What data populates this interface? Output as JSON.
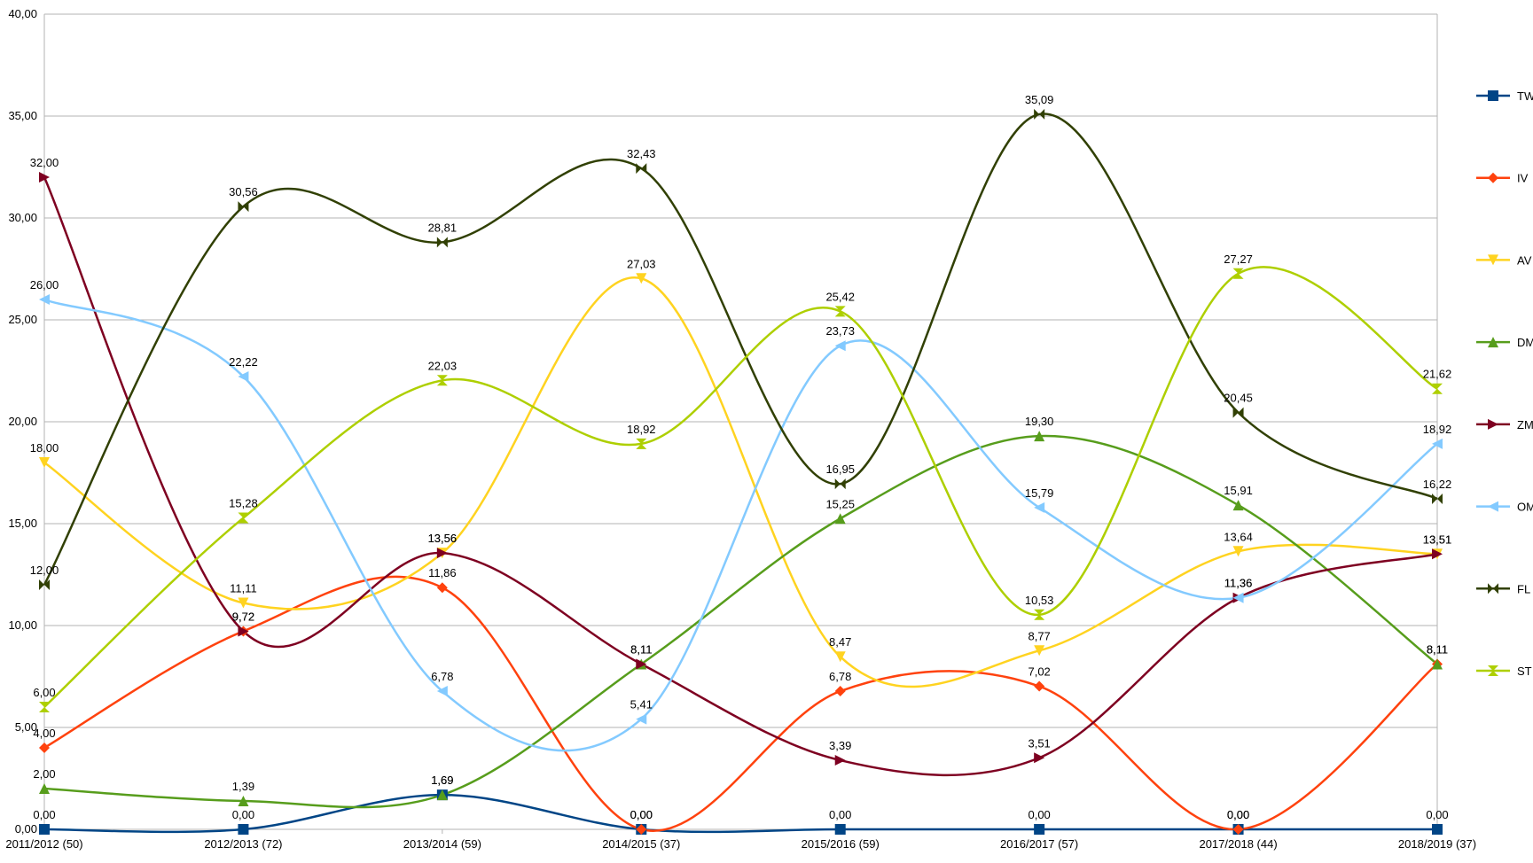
{
  "chart_data": {
    "type": "line",
    "title": "",
    "xlabel": "",
    "ylabel": "",
    "ylim": [
      0,
      40
    ],
    "yticks": [
      "0,00",
      "5,00",
      "10,00",
      "15,00",
      "20,00",
      "25,00",
      "30,00",
      "35,00",
      "40,00"
    ],
    "grid": "horizontal",
    "legend_position": "right",
    "smooth": true,
    "categories": [
      "2011/2012 (50)",
      "2012/2013 (72)",
      "2013/2014 (59)",
      "2014/2015 (37)",
      "2015/2016 (59)",
      "2016/2017 (57)",
      "2017/2018 (44)",
      "2018/2019 (37)"
    ],
    "series": [
      {
        "name": "TW",
        "color": "#004586",
        "marker": "square",
        "values": [
          0.0,
          0.0,
          1.69,
          0.0,
          0.0,
          0.0,
          0.0,
          0.0
        ],
        "labels": [
          "0,00",
          "0,00",
          "1,69",
          "0,00",
          "0,00",
          "0,00",
          "0,00",
          "0,00"
        ]
      },
      {
        "name": "IV",
        "color": "#ff420e",
        "marker": "diamond",
        "values": [
          4.0,
          9.72,
          11.86,
          0.0,
          6.78,
          7.02,
          0.0,
          8.11
        ],
        "labels": [
          "4,00",
          "9,72",
          "11,86",
          "0,00",
          "6,78",
          "7,02",
          "0,00",
          "8,11"
        ]
      },
      {
        "name": "AV",
        "color": "#ffd320",
        "marker": "triangle-down",
        "values": [
          18.0,
          11.11,
          13.56,
          27.03,
          8.47,
          8.77,
          13.64,
          13.51
        ],
        "labels": [
          "18,00",
          "11,11",
          "13,56",
          "27,03",
          "8,47",
          "8,77",
          "13,64",
          "13,51"
        ]
      },
      {
        "name": "DM",
        "color": "#579d1c",
        "marker": "triangle-up",
        "values": [
          2.0,
          1.39,
          1.69,
          8.11,
          15.25,
          19.3,
          15.91,
          8.11
        ],
        "labels": [
          "2,00",
          "1,39",
          "1,69",
          "8,11",
          "15,25",
          "19,30",
          "15,91",
          "8,11"
        ]
      },
      {
        "name": "ZM",
        "color": "#7e0021",
        "marker": "triangle-right",
        "values": [
          32.0,
          9.72,
          13.56,
          8.11,
          3.39,
          3.51,
          11.36,
          13.51
        ],
        "labels": [
          "32,00",
          "9,72",
          "13,56",
          "8,11",
          "3,39",
          "3,51",
          "11,36",
          "13,51"
        ]
      },
      {
        "name": "OM",
        "color": "#83caff",
        "marker": "triangle-left",
        "values": [
          26.0,
          22.22,
          6.78,
          5.41,
          23.73,
          15.79,
          11.36,
          18.92
        ],
        "labels": [
          "26,00",
          "22,22",
          "6,78",
          "5,41",
          "23,73",
          "15,79",
          "11,36",
          "18,92"
        ]
      },
      {
        "name": "FL",
        "color": "#314004",
        "marker": "bowtie",
        "values": [
          12.0,
          30.56,
          28.81,
          32.43,
          16.95,
          35.09,
          20.45,
          16.22
        ],
        "labels": [
          "12,00",
          "30,56",
          "28,81",
          "32,43",
          "16,95",
          "35,09",
          "20,45",
          "16,22"
        ]
      },
      {
        "name": "ST",
        "color": "#aecf00",
        "marker": "hourglass",
        "values": [
          6.0,
          15.28,
          22.03,
          18.92,
          25.42,
          10.53,
          27.27,
          21.62
        ],
        "labels": [
          "6,00",
          "15,28",
          "22,03",
          "18,92",
          "25,42",
          "10,53",
          "27,27",
          "21,62"
        ]
      }
    ]
  }
}
